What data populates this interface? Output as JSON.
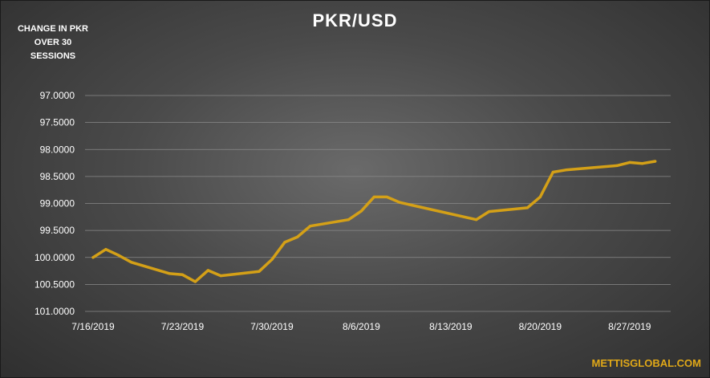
{
  "chart_data": {
    "type": "line",
    "title": "PKR/USD",
    "ylabel": "CHANGE IN PKR OVER 30 SESSIONS",
    "xlabel": "",
    "y_reversed": true,
    "ylim": [
      97.0,
      101.0
    ],
    "y_ticks": [
      "97.0000",
      "97.5000",
      "98.0000",
      "98.5000",
      "99.0000",
      "99.5000",
      "100.0000",
      "100.5000",
      "101.0000"
    ],
    "x_ticks": [
      "7/16/2019",
      "7/23/2019",
      "7/30/2019",
      "8/6/2019",
      "8/13/2019",
      "8/20/2019",
      "8/27/2019"
    ],
    "grid": true,
    "line_color": "#d4a017",
    "series": [
      {
        "x": [
          "7/16/2019",
          "7/17/2019",
          "7/18/2019",
          "7/19/2019",
          "7/22/2019",
          "7/23/2019",
          "7/24/2019",
          "7/25/2019",
          "7/26/2019",
          "7/29/2019",
          "7/30/2019",
          "7/31/2019",
          "8/1/2019",
          "8/2/2019",
          "8/5/2019",
          "8/6/2019",
          "8/7/2019",
          "8/8/2019",
          "8/9/2019",
          "8/15/2019",
          "8/16/2019",
          "8/19/2019",
          "8/20/2019",
          "8/21/2019",
          "8/22/2019",
          "8/26/2019",
          "8/27/2019",
          "8/28/2019",
          "8/29/2019"
        ],
        "values": [
          100.0,
          99.85,
          99.96,
          100.09,
          100.3,
          100.32,
          100.45,
          100.24,
          100.34,
          100.26,
          100.04,
          99.72,
          99.62,
          99.42,
          99.3,
          99.14,
          98.88,
          98.88,
          98.98,
          99.3,
          99.15,
          99.08,
          98.88,
          98.42,
          98.38,
          98.3,
          98.24,
          98.26,
          98.22
        ]
      }
    ]
  },
  "watermark": "METTISGLOBAL.COM"
}
